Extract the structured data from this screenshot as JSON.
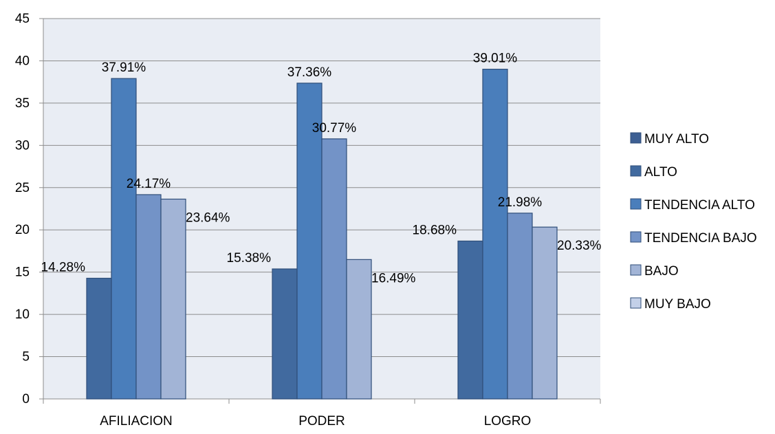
{
  "chart_data": {
    "type": "bar",
    "categories": [
      "AFILIACION",
      "PODER",
      "LOGRO"
    ],
    "series": [
      {
        "name": "MUY ALTO",
        "values": [
          null,
          null,
          null
        ],
        "color": "#3D5F93"
      },
      {
        "name": "ALTO",
        "values": [
          14.28,
          15.38,
          18.68
        ],
        "color": "#416A9F"
      },
      {
        "name": "TENDENCIA ALTO",
        "values": [
          37.91,
          37.36,
          39.01
        ],
        "color": "#4A7EBB"
      },
      {
        "name": "TENDENCIA BAJO",
        "values": [
          24.17,
          30.77,
          21.98
        ],
        "color": "#7393C7"
      },
      {
        "name": "BAJO",
        "values": [
          23.64,
          16.49,
          20.33
        ],
        "color": "#A2B4D6"
      },
      {
        "name": "MUY BAJO",
        "values": [
          null,
          null,
          null
        ],
        "color": "#C3D0E8"
      }
    ],
    "data_labels": [
      [
        "14.28%",
        "37.91%",
        "24.17%",
        "23.64%"
      ],
      [
        "15.38%",
        "37.36%",
        "30.77%",
        "16.49%"
      ],
      [
        "18.68%",
        "39.01%",
        "21.98%",
        "20.33%"
      ]
    ],
    "yticks": [
      "0",
      "5",
      "10",
      "15",
      "20",
      "25",
      "30",
      "35",
      "40",
      "45"
    ],
    "ylim": [
      0,
      45
    ],
    "grid": true,
    "legend_position": "right",
    "plot_background": "#E9EDF4",
    "gridline_color": "#8C8C8C",
    "bar_border_color": "#2F4E78"
  }
}
